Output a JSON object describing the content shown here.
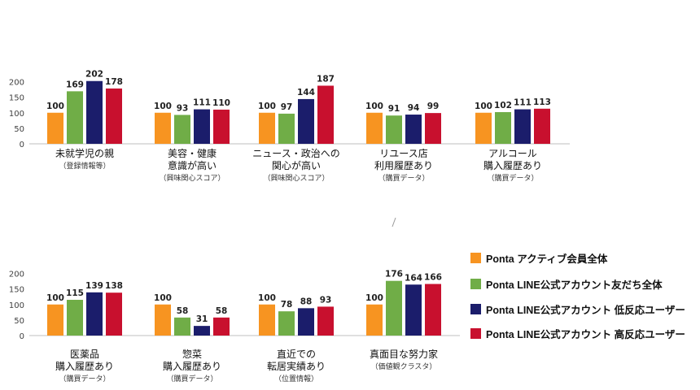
{
  "colors": {
    "Ponta アクティブ会員全体": "#F79421",
    "Ponta LINE公式アカウント友だち全体": "#70AD47",
    "Ponta LINE公式アカウント 低反応ユーザー": "#1B1D6B",
    "Ponta LINE公式アカウント 高反応ユーザー": "#C8102E"
  },
  "legend": [
    "Ponta アクティブ会員全体",
    "Ponta LINE公式アカウント友だち全体",
    "Ponta LINE公式アカウント 低反応ユーザー",
    "Ponta LINE公式アカウント 高反応ユーザー"
  ],
  "chart_data": [
    {
      "type": "bar",
      "yticks": [
        0,
        50,
        100,
        150,
        200
      ],
      "ylim": [
        0,
        210
      ],
      "grid": false,
      "series_names": [
        "Ponta アクティブ会員全体",
        "Ponta LINE公式アカウント友だち全体",
        "Ponta LINE公式アカウント 低反応ユーザー",
        "Ponta LINE公式アカウント 高反応ユーザー"
      ],
      "groups": [
        {
          "label": [
            "未就学児の親"
          ],
          "sub": "（登録情報等）",
          "values": [
            100,
            169,
            202,
            178
          ]
        },
        {
          "label": [
            "美容・健康",
            "意識が高い"
          ],
          "sub": "（興味関心スコア）",
          "values": [
            100,
            93,
            111,
            110
          ]
        },
        {
          "label": [
            "ニュース・政治への",
            "関心が高い"
          ],
          "sub": "（興味関心スコア）",
          "values": [
            100,
            97,
            144,
            187
          ]
        },
        {
          "label": [
            "リユース店",
            "利用履歴あり"
          ],
          "sub": "（購買データ）",
          "values": [
            100,
            91,
            94,
            99
          ]
        },
        {
          "label": [
            "アルコール",
            "購入履歴あり"
          ],
          "sub": "（購買データ）",
          "values": [
            100,
            102,
            111,
            113
          ]
        }
      ]
    },
    {
      "type": "bar",
      "yticks": [
        0,
        50,
        100,
        150,
        200
      ],
      "ylim": [
        0,
        210
      ],
      "grid": false,
      "series_names": [
        "Ponta アクティブ会員全体",
        "Ponta LINE公式アカウント友だち全体",
        "Ponta LINE公式アカウント 低反応ユーザー",
        "Ponta LINE公式アカウント 高反応ユーザー"
      ],
      "groups": [
        {
          "label": [
            "医薬品",
            "購入履歴あり"
          ],
          "sub": "（購買データ）",
          "values": [
            100,
            115,
            139,
            138
          ]
        },
        {
          "label": [
            "惣菜",
            "購入履歴あり"
          ],
          "sub": "（購買データ）",
          "values": [
            100,
            58,
            31,
            58
          ]
        },
        {
          "label": [
            "直近での",
            "転居実績あり"
          ],
          "sub": "（位置情報）",
          "values": [
            100,
            78,
            88,
            93
          ]
        },
        {
          "label": [
            "真面目な努力家"
          ],
          "sub": "（価値観クラスタ）",
          "values": [
            100,
            176,
            164,
            166
          ]
        }
      ]
    }
  ]
}
